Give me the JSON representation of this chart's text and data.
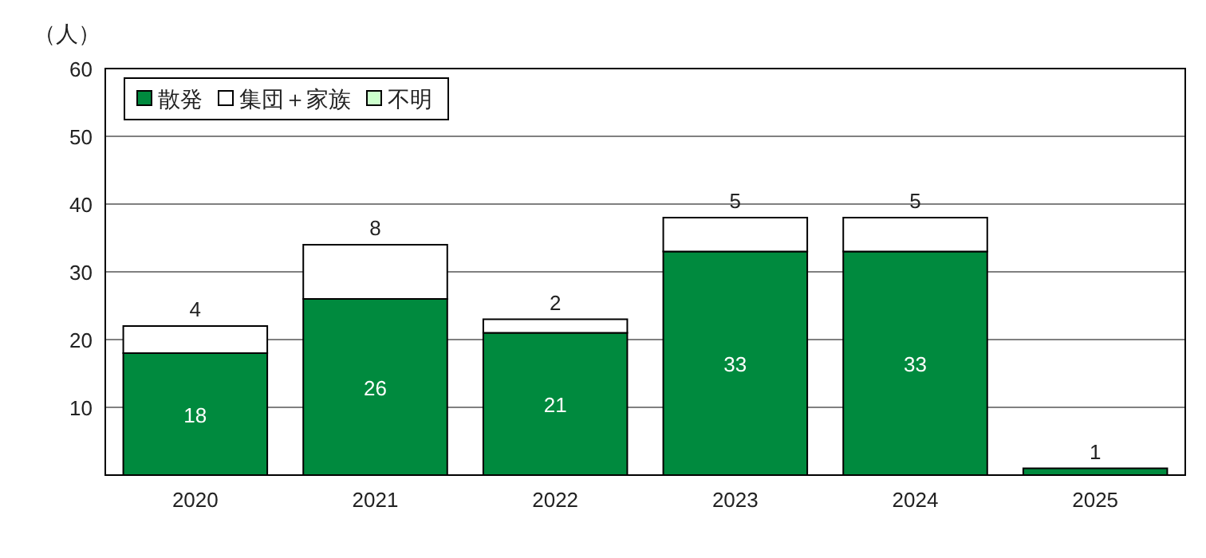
{
  "chart_data": {
    "type": "bar",
    "stacked": true,
    "ylabel": "（人）",
    "categories": [
      "2020",
      "2021",
      "2022",
      "2023",
      "2024",
      "2025"
    ],
    "series": [
      {
        "name": "散発",
        "color": "#008a3e",
        "values": [
          18,
          26,
          21,
          33,
          33,
          1
        ]
      },
      {
        "name": "集団＋家族",
        "color": "#ffffff",
        "values": [
          4,
          8,
          2,
          5,
          5,
          null
        ]
      },
      {
        "name": "不明",
        "color": "#ccffcc",
        "values": [
          null,
          null,
          null,
          null,
          null,
          null
        ]
      }
    ],
    "ylim": [
      0,
      60
    ],
    "yticks": [
      {
        "value": 0,
        "label": null
      },
      10,
      20,
      30,
      40,
      50,
      60
    ],
    "grid": "y",
    "legend": "top left",
    "data_labels": true
  }
}
